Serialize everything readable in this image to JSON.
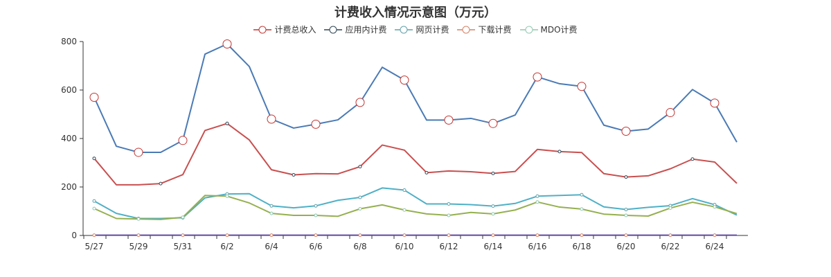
{
  "chart_data": {
    "type": "line",
    "title": "计费收入情况示意图（万元）",
    "x": [
      "5/27",
      "5/28",
      "5/29",
      "5/30",
      "5/31",
      "6/1",
      "6/2",
      "6/3",
      "6/4",
      "6/5",
      "6/6",
      "6/7",
      "6/8",
      "6/9",
      "6/10",
      "6/11",
      "6/12",
      "6/13",
      "6/14",
      "6/15",
      "6/16",
      "6/17",
      "6/18",
      "6/19",
      "6/20",
      "6/21",
      "6/22",
      "6/23",
      "6/24",
      "6/25"
    ],
    "xticks": [
      "5/27",
      "5/29",
      "5/31",
      "6/2",
      "6/4",
      "6/6",
      "6/8",
      "6/10",
      "6/12",
      "6/14",
      "6/16",
      "6/18",
      "6/20",
      "6/22",
      "6/24"
    ],
    "ylim": [
      0,
      800
    ],
    "yticks": [
      0,
      200,
      400,
      600,
      800
    ],
    "legend_position": "top-center",
    "grid": false,
    "series": [
      {
        "name": "计费总收入",
        "color": "#4a7ab5",
        "marker_color": "#c23531",
        "marker_every": 2,
        "values": [
          570,
          368,
          343,
          343,
          392,
          748,
          790,
          697,
          480,
          443,
          459,
          477,
          549,
          694,
          641,
          476,
          476,
          483,
          462,
          497,
          654,
          626,
          615,
          455,
          430,
          439,
          507,
          602,
          546,
          385
        ]
      },
      {
        "name": "应用内计费",
        "color": "#c94f4f",
        "marker_color": "#2f4554",
        "marker_every": 3,
        "values": [
          318,
          209,
          209,
          214,
          251,
          433,
          462,
          394,
          271,
          250,
          255,
          254,
          284,
          373,
          352,
          259,
          266,
          263,
          256,
          264,
          355,
          346,
          342,
          255,
          241,
          246,
          275,
          315,
          303,
          215
        ]
      },
      {
        "name": "网页计费",
        "color": "#4fb0c6",
        "marker_color": "#61a0a8",
        "marker_every": 2,
        "values": [
          142,
          91,
          70,
          70,
          73,
          155,
          171,
          172,
          122,
          114,
          122,
          145,
          157,
          196,
          187,
          130,
          130,
          127,
          121,
          132,
          162,
          165,
          168,
          118,
          107,
          116,
          123,
          152,
          127,
          84
        ]
      },
      {
        "name": "下载计费",
        "color": "#5b4a9c",
        "marker_color": "#d48265",
        "marker_every": 2,
        "values": [
          1,
          1,
          1,
          1,
          1,
          1,
          1,
          1,
          1,
          1,
          1,
          1,
          1,
          1,
          1,
          1,
          1,
          1,
          1,
          1,
          1,
          1,
          1,
          1,
          1,
          1,
          1,
          1,
          1,
          1
        ]
      },
      {
        "name": "MDO计费",
        "color": "#95b04f",
        "marker_color": "#91c7ae",
        "marker_every": 2,
        "values": [
          111,
          70,
          68,
          66,
          75,
          165,
          162,
          134,
          91,
          83,
          83,
          79,
          110,
          126,
          105,
          89,
          83,
          95,
          89,
          105,
          138,
          117,
          109,
          88,
          83,
          80,
          113,
          137,
          118,
          90
        ]
      }
    ]
  }
}
